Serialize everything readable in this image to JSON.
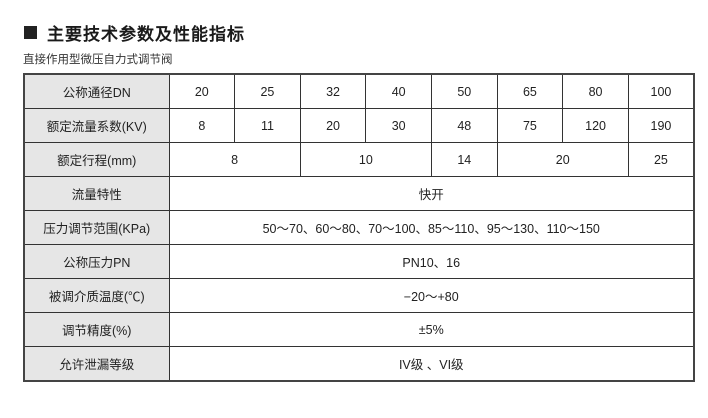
{
  "heading": "主要技术参数及性能指标",
  "subtitle": "直接作用型微压自力式调节阀",
  "table": {
    "dn": {
      "label": "公称通径DN",
      "values": [
        "20",
        "25",
        "32",
        "40",
        "50",
        "65",
        "80",
        "100"
      ]
    },
    "kv": {
      "label": "额定流量系数(KV)",
      "values": [
        "8",
        "11",
        "20",
        "30",
        "48",
        "75",
        "120",
        "190"
      ]
    },
    "stroke": {
      "label": "额定行程(mm)",
      "values": [
        "8",
        "10",
        "14",
        "20",
        "25"
      ]
    },
    "flow_char": {
      "label": "流量特性",
      "value": "快开"
    },
    "pressure_range": {
      "label": "压力调节范围(KPa)",
      "value": "50～70、60～80、70～100、85～110、95～130、110～150"
    },
    "pn": {
      "label": "公称压力PN",
      "value": "PN10、16"
    },
    "temp": {
      "label": "被调介质温度(℃)",
      "value": "−20～+80"
    },
    "accuracy": {
      "label": "调节精度(%)",
      "value": "±5%"
    },
    "leakage": {
      "label": "允许泄漏等级",
      "value": "IV级 、VI级"
    }
  }
}
